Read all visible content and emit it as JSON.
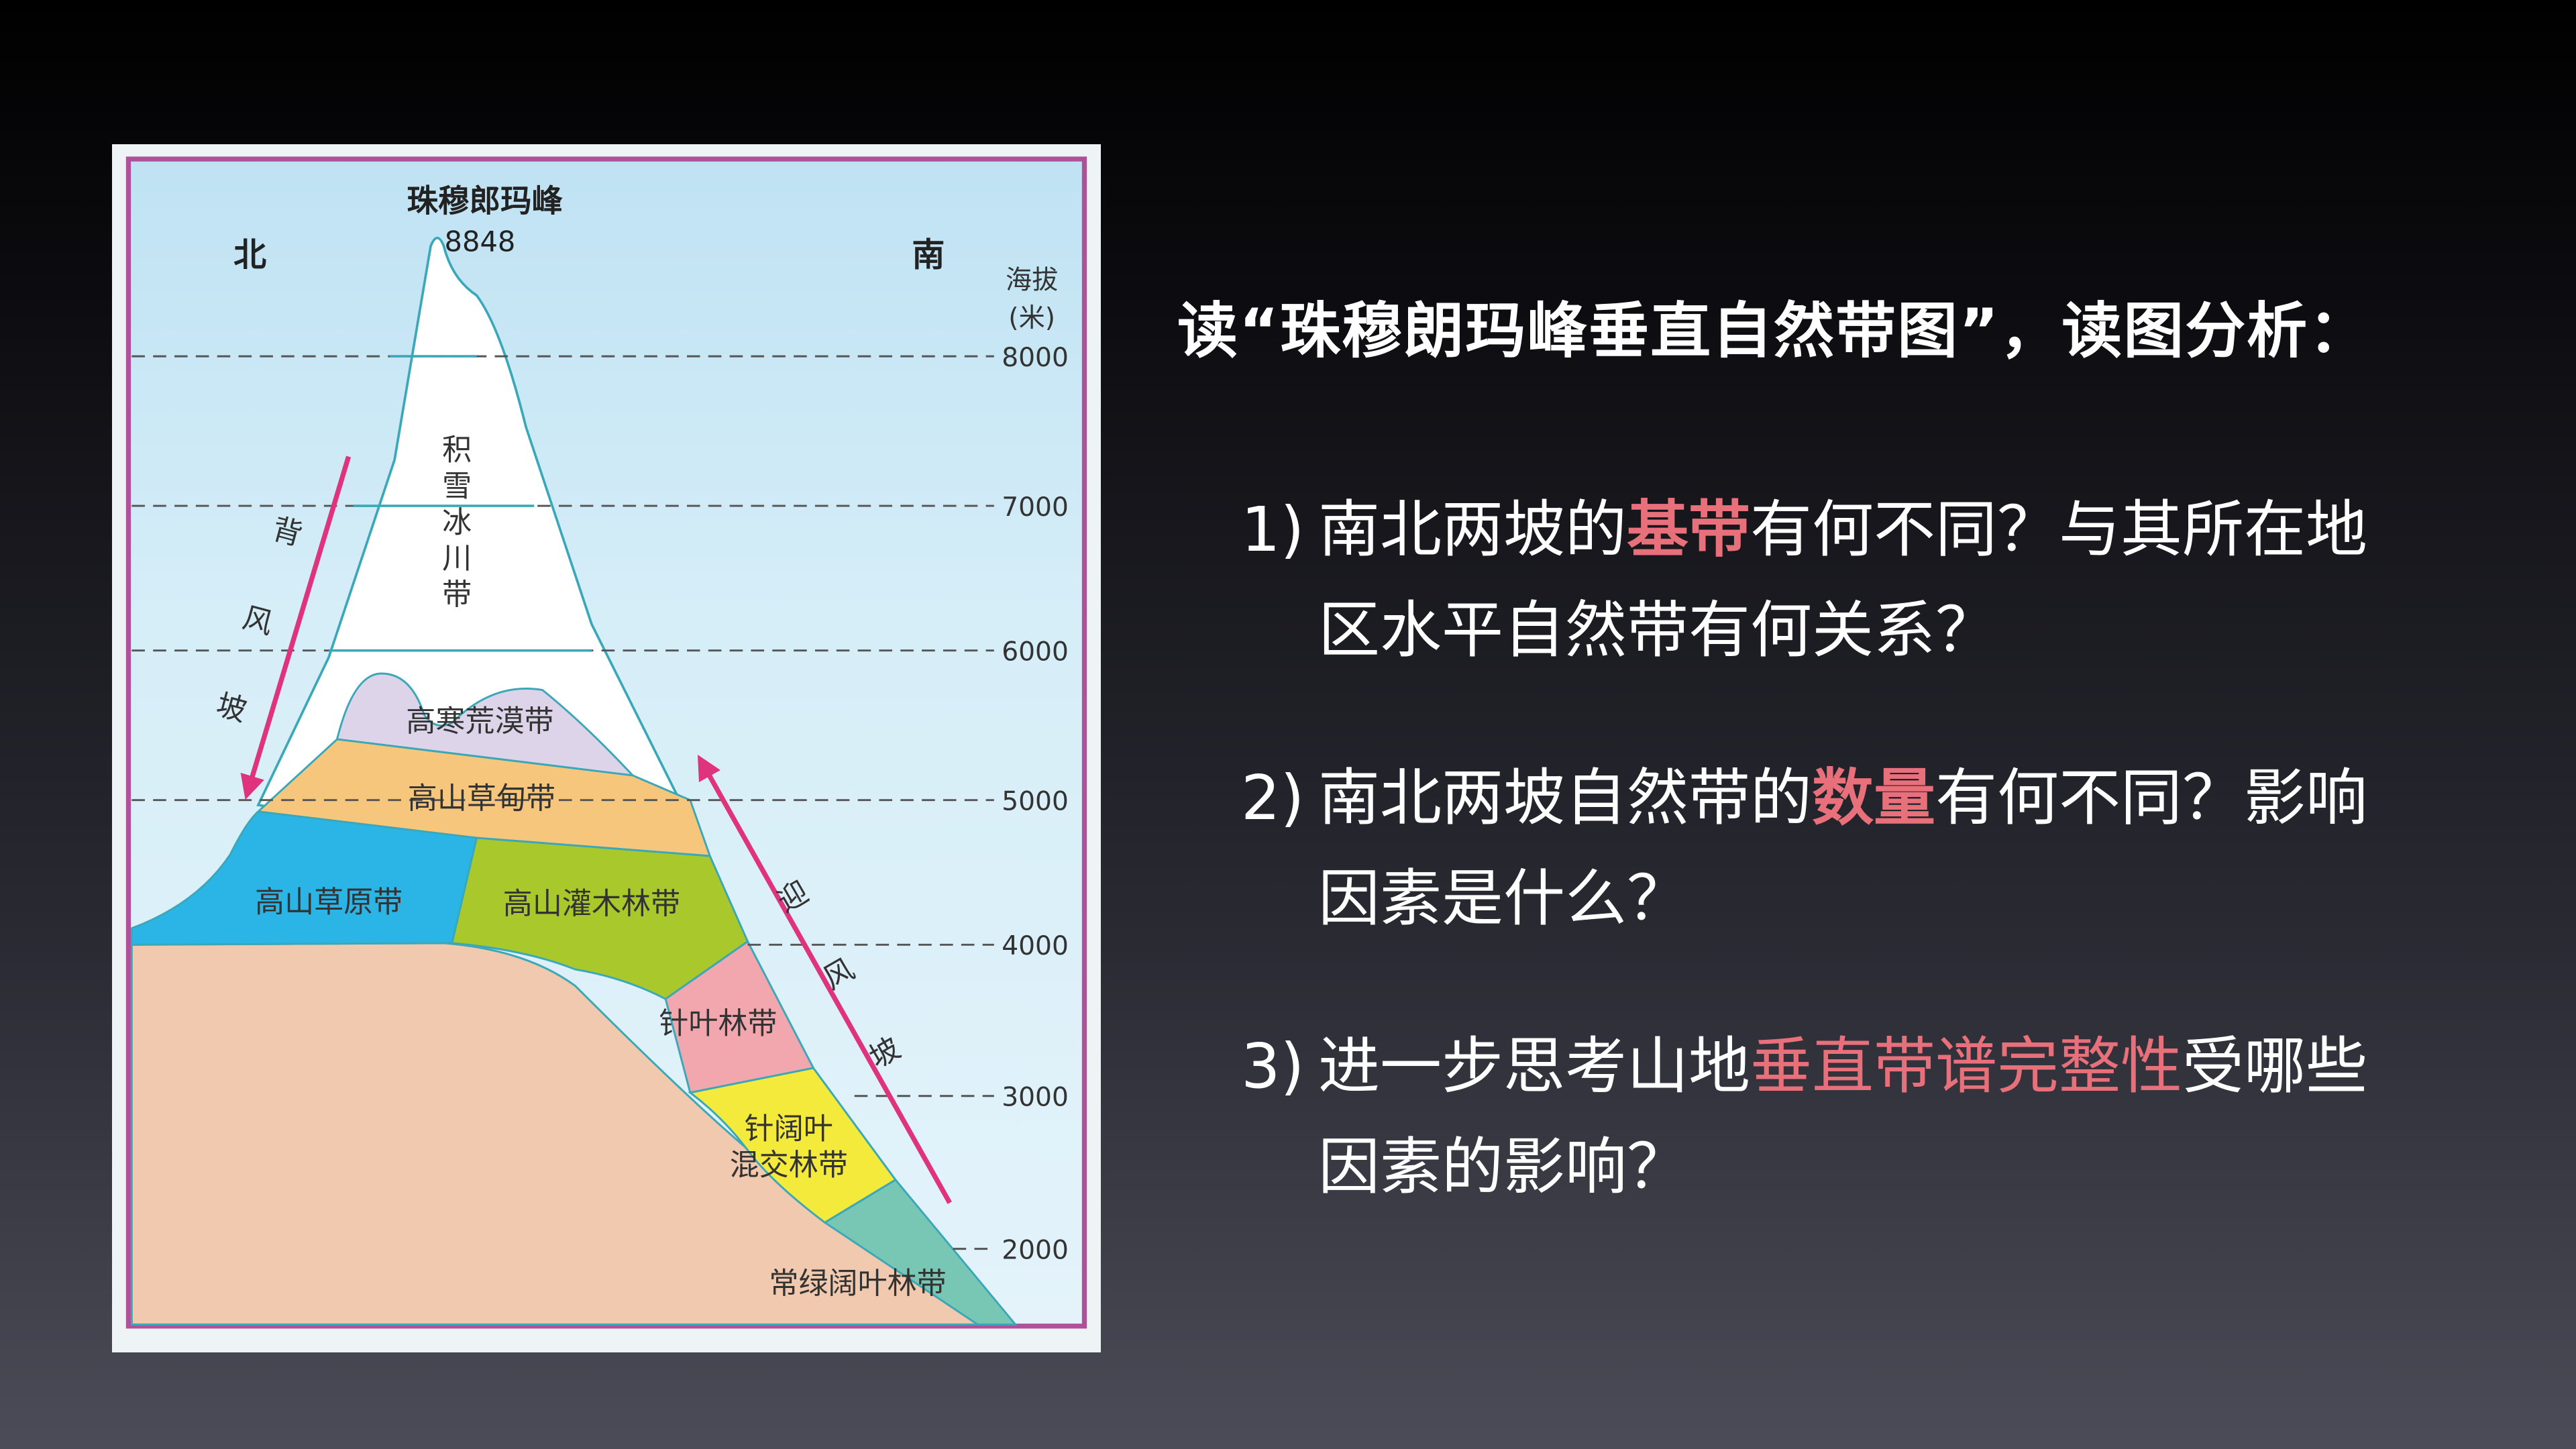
{
  "diagram": {
    "peak_name": "珠穆郎玛峰",
    "peak_height": "8848",
    "north": "北",
    "south": "南",
    "axis_label_1": "海拔",
    "axis_label_2": "(米)",
    "elevations": [
      "8000",
      "7000",
      "6000",
      "5000",
      "4000",
      "3000",
      "2000"
    ],
    "zones": {
      "snow": [
        "积",
        "雪",
        "冰",
        "川",
        "带"
      ],
      "desert": "高寒荒漠带",
      "meadow": "高山草甸带",
      "steppe": "高山草原带",
      "shrub": "高山灌木林带",
      "conifer": "针叶林带",
      "mixed_1": "针阔叶",
      "mixed_2": "混交林带",
      "evergreen": "常绿阔叶林带"
    },
    "leeward": [
      "背",
      "风",
      "坡"
    ],
    "windward": [
      "迎",
      "风",
      "坡"
    ],
    "colors": {
      "sky": "#d4ecf7",
      "border": "#b0509a",
      "ground": "#f1c9ae",
      "snow": "#ffffff",
      "desert": "#ddd4ea",
      "meadow": "#f6c67c",
      "steppe": "#2bb5e6",
      "shrub": "#a9c82c",
      "conifer": "#f2a6ae",
      "mixed": "#f4ea3c",
      "evergreen": "#78c6b4",
      "arrow": "#e0337e"
    }
  },
  "title": "读“珠穆朗玛峰垂直自然带图”，读图分析：",
  "questions": [
    {
      "number": "1)",
      "before": "南北两坡的",
      "highlight": "基带",
      "after": "有何不同？与其所在地",
      "line2": "区水平自然带有何关系？"
    },
    {
      "number": "2)",
      "before": "南北两坡自然带的",
      "highlight": "数量",
      "after": "有何不同？影响",
      "line2": "因素是什么？"
    },
    {
      "number": "3)",
      "before": "进一步思考山地",
      "highlight": "垂直带谱完整性",
      "after": "受哪些",
      "line2": "因素的影响？"
    }
  ]
}
